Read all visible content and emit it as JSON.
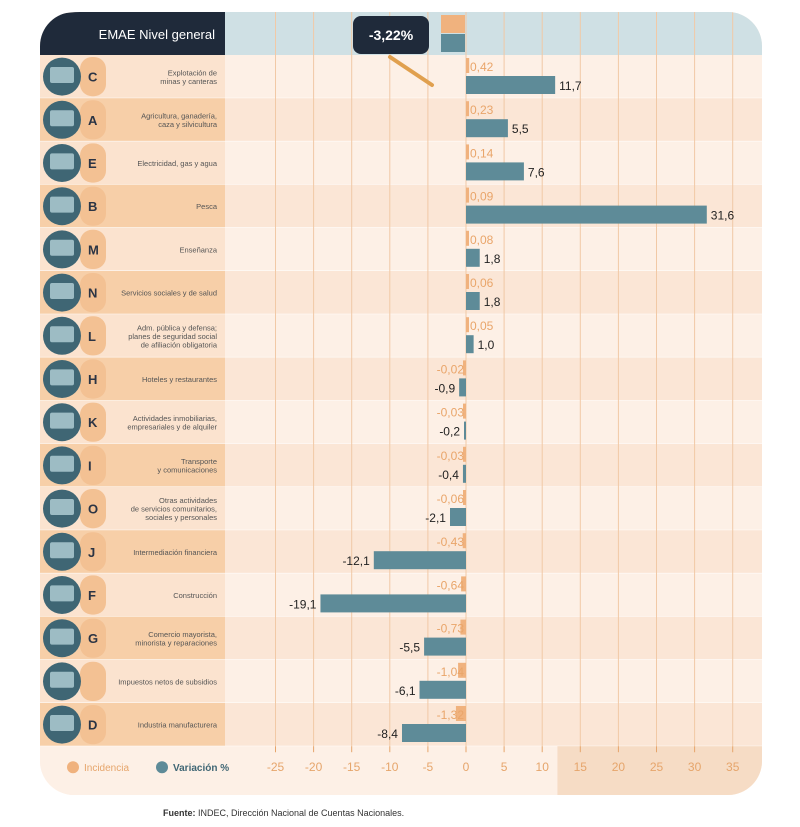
{
  "chart_data": {
    "type": "bar",
    "orientation": "horizontal",
    "header": {
      "title": "EMAE Nivel general",
      "total": "-3,22%"
    },
    "legend": [
      {
        "name": "Incidencia",
        "color": "#f0b27e"
      },
      {
        "name": "Variación %",
        "color": "#5e8b98"
      }
    ],
    "legend_placement": "bottom-left",
    "xlim": [
      -30,
      37
    ],
    "xticks": [
      -25,
      -20,
      -15,
      -10,
      -5,
      0,
      5,
      10,
      15,
      20,
      25,
      30,
      35
    ],
    "grid": true,
    "categories": [
      {
        "letter": "C",
        "label": [
          "Explotación de",
          "minas y canteras"
        ],
        "incidencia": 0.42,
        "variacion": 11.7,
        "inc_text": "0,42",
        "var_text": "11,7"
      },
      {
        "letter": "A",
        "label": [
          "Agricultura, ganadería,",
          "caza y silvicultura"
        ],
        "incidencia": 0.23,
        "variacion": 5.5,
        "inc_text": "0,23",
        "var_text": "5,5"
      },
      {
        "letter": "E",
        "label": [
          "Electricidad, gas y agua"
        ],
        "incidencia": 0.14,
        "variacion": 7.6,
        "inc_text": "0,14",
        "var_text": "7,6"
      },
      {
        "letter": "B",
        "label": [
          "Pesca"
        ],
        "incidencia": 0.09,
        "variacion": 31.6,
        "inc_text": "0,09",
        "var_text": "31,6"
      },
      {
        "letter": "M",
        "label": [
          "Enseñanza"
        ],
        "incidencia": 0.08,
        "variacion": 1.8,
        "inc_text": "0,08",
        "var_text": "1,8"
      },
      {
        "letter": "N",
        "label": [
          "Servicios sociales y de salud"
        ],
        "incidencia": 0.06,
        "variacion": 1.8,
        "inc_text": "0,06",
        "var_text": "1,8"
      },
      {
        "letter": "L",
        "label": [
          "Adm. pública y defensa;",
          "planes de seguridad social",
          "de afiliación obligatoria"
        ],
        "incidencia": 0.05,
        "variacion": 1.0,
        "inc_text": "0,05",
        "var_text": "1,0"
      },
      {
        "letter": "H",
        "label": [
          "Hoteles y restaurantes"
        ],
        "incidencia": -0.02,
        "variacion": -0.9,
        "inc_text": "-0,02",
        "var_text": "-0,9"
      },
      {
        "letter": "K",
        "label": [
          "Actividades inmobiliarias,",
          "empresariales y de alquiler"
        ],
        "incidencia": -0.03,
        "variacion": -0.2,
        "inc_text": "-0,03",
        "var_text": "-0,2"
      },
      {
        "letter": "I",
        "label": [
          "Transporte",
          "y comunicaciones"
        ],
        "incidencia": -0.03,
        "variacion": -0.4,
        "inc_text": "-0,03",
        "var_text": "-0,4"
      },
      {
        "letter": "O",
        "label": [
          "Otras actividades",
          "de servicios comunitarios,",
          "sociales y personales"
        ],
        "incidencia": -0.06,
        "variacion": -2.1,
        "inc_text": "-0,06",
        "var_text": "-2,1"
      },
      {
        "letter": "J",
        "label": [
          "Intermediación financiera"
        ],
        "incidencia": -0.43,
        "variacion": -12.1,
        "inc_text": "-0,43",
        "var_text": "-12,1"
      },
      {
        "letter": "F",
        "label": [
          "Construcción"
        ],
        "incidencia": -0.64,
        "variacion": -19.1,
        "inc_text": "-0,64",
        "var_text": "-19,1"
      },
      {
        "letter": "G",
        "label": [
          "Comercio mayorista,",
          "minorista y reparaciones"
        ],
        "incidencia": -0.73,
        "variacion": -5.5,
        "inc_text": "-0,73",
        "var_text": "-5,5"
      },
      {
        "letter": "",
        "label": [
          "Impuestos netos de subsidios"
        ],
        "incidencia": -1.04,
        "variacion": -6.1,
        "inc_text": "-1,04",
        "var_text": "-6,1"
      },
      {
        "letter": "D",
        "label": [
          "Industria manufacturera"
        ],
        "incidencia": -1.32,
        "variacion": -8.4,
        "inc_text": "-1,32",
        "var_text": "-8,4"
      }
    ]
  },
  "source": {
    "label": "Fuente:",
    "text": " INDEC, Dirección Nacional de Cuentas Nacionales."
  },
  "colors": {
    "dark": "#1f2a3a",
    "teal": "#5e8b98",
    "orange": "#f0b27e",
    "header_bg": "#cfe0e4"
  }
}
